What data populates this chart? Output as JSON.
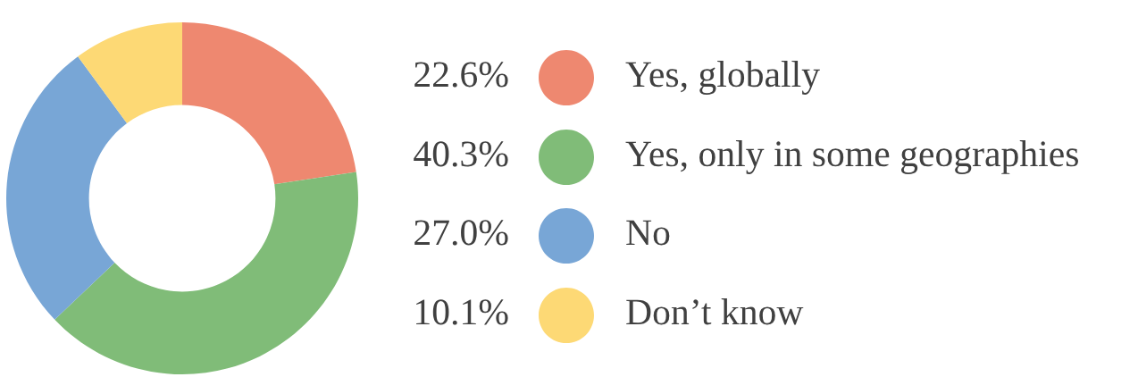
{
  "chart_data": {
    "type": "donut",
    "categories": [
      "Yes, globally",
      "Yes, only in some geographies",
      "No",
      "Don’t know"
    ],
    "values": [
      22.6,
      40.3,
      27.0,
      10.1
    ],
    "value_labels": [
      "22.6%",
      "40.3%",
      "27.0%",
      "10.1%"
    ],
    "colors": [
      "#ee8870",
      "#80bc78",
      "#78a6d6",
      "#fdd975"
    ],
    "legend": "right"
  }
}
